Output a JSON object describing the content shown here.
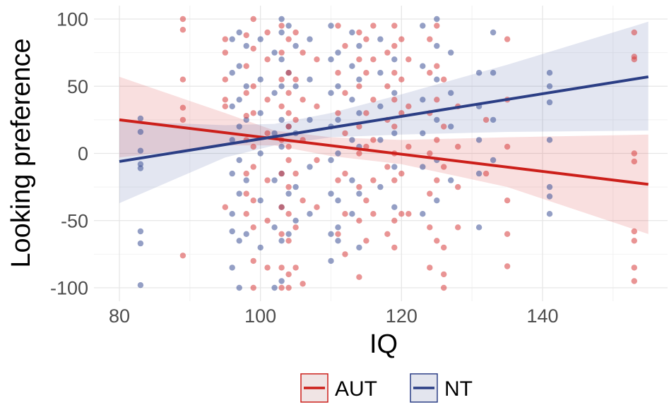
{
  "chart_data": {
    "type": "scatter",
    "xlabel": "IQ",
    "ylabel": "Looking preference",
    "xlim": [
      76,
      156
    ],
    "ylim": [
      -110,
      110
    ],
    "xticks": [
      80,
      100,
      120,
      140
    ],
    "yticks": [
      100,
      50,
      0,
      -50,
      -100
    ],
    "xtick_labels": [
      "80",
      "100",
      "120",
      "140"
    ],
    "ytick_labels": [
      "100",
      "50",
      "0",
      "-50",
      "-100"
    ],
    "grid": true,
    "legend_position": "bottom",
    "series": [
      {
        "name": "AUT",
        "color": "#cc1f1a",
        "fit_line": [
          [
            80,
            25
          ],
          [
            155,
            -23
          ]
        ],
        "ci_band": {
          "x": [
            80,
            95,
            102,
            110,
            120,
            135,
            155
          ],
          "upper": [
            57,
            30,
            17,
            12,
            10,
            12,
            14
          ],
          "lower": [
            -3,
            6,
            6,
            -2,
            -8,
            -25,
            -60
          ]
        },
        "points": [
          [
            89,
            100
          ],
          [
            89,
            92
          ],
          [
            89,
            55
          ],
          [
            89,
            34
          ],
          [
            89,
            25
          ],
          [
            89,
            -76
          ],
          [
            95,
            85
          ],
          [
            95,
            75
          ],
          [
            95,
            55
          ],
          [
            95,
            40
          ],
          [
            95,
            35
          ],
          [
            95,
            -40
          ],
          [
            98,
            88
          ],
          [
            98,
            65
          ],
          [
            98,
            45
          ],
          [
            98,
            28
          ],
          [
            98,
            10
          ],
          [
            98,
            -15
          ],
          [
            98,
            -30
          ],
          [
            98,
            -45
          ],
          [
            99,
            100
          ],
          [
            99,
            78
          ],
          [
            99,
            50
          ],
          [
            99,
            30
          ],
          [
            99,
            5
          ],
          [
            99,
            -10
          ],
          [
            99,
            -35
          ],
          [
            99,
            -55
          ],
          [
            99,
            -80
          ],
          [
            99,
            -100
          ],
          [
            101,
            90
          ],
          [
            101,
            70
          ],
          [
            101,
            40
          ],
          [
            101,
            15
          ],
          [
            101,
            -20
          ],
          [
            101,
            -50
          ],
          [
            101,
            -85
          ],
          [
            103,
            95
          ],
          [
            103,
            75
          ],
          [
            103,
            55
          ],
          [
            103,
            35
          ],
          [
            103,
            10
          ],
          [
            103,
            -15
          ],
          [
            103,
            -40
          ],
          [
            103,
            -60
          ],
          [
            103,
            -85
          ],
          [
            103,
            -100
          ],
          [
            104,
            85
          ],
          [
            104,
            60
          ],
          [
            104,
            45
          ],
          [
            104,
            30
          ],
          [
            104,
            20
          ],
          [
            104,
            5
          ],
          [
            104,
            -5
          ],
          [
            104,
            -25
          ],
          [
            104,
            -45
          ],
          [
            104,
            -65
          ],
          [
            104,
            -90
          ],
          [
            104,
            -100
          ],
          [
            105,
            90
          ],
          [
            105,
            55
          ],
          [
            105,
            25
          ],
          [
            105,
            -15
          ],
          [
            105,
            -55
          ],
          [
            105,
            -85
          ],
          [
            106,
            75
          ],
          [
            106,
            40
          ],
          [
            106,
            10
          ],
          [
            106,
            -35
          ],
          [
            106,
            -97
          ],
          [
            108,
            70
          ],
          [
            108,
            35
          ],
          [
            108,
            -5
          ],
          [
            108,
            -40
          ],
          [
            111,
            95
          ],
          [
            111,
            60
          ],
          [
            111,
            30
          ],
          [
            111,
            -20
          ],
          [
            111,
            -60
          ],
          [
            112,
            80
          ],
          [
            112,
            45
          ],
          [
            112,
            15
          ],
          [
            112,
            -15
          ],
          [
            112,
            -45
          ],
          [
            112,
            -75
          ],
          [
            114,
            90
          ],
          [
            114,
            70
          ],
          [
            114,
            50
          ],
          [
            114,
            20
          ],
          [
            114,
            0
          ],
          [
            114,
            -25
          ],
          [
            114,
            -50
          ],
          [
            114,
            -92
          ],
          [
            115,
            85
          ],
          [
            115,
            60
          ],
          [
            115,
            30
          ],
          [
            115,
            5
          ],
          [
            115,
            -35
          ],
          [
            115,
            -65
          ],
          [
            116,
            95
          ],
          [
            116,
            70
          ],
          [
            116,
            40
          ],
          [
            116,
            10
          ],
          [
            116,
            -20
          ],
          [
            116,
            -45
          ],
          [
            118,
            75
          ],
          [
            118,
            50
          ],
          [
            118,
            25
          ],
          [
            118,
            -10
          ],
          [
            118,
            -60
          ],
          [
            119,
            95
          ],
          [
            119,
            80
          ],
          [
            119,
            60
          ],
          [
            119,
            40
          ],
          [
            119,
            20
          ],
          [
            119,
            0
          ],
          [
            119,
            -20
          ],
          [
            119,
            -50
          ],
          [
            119,
            -70
          ],
          [
            120,
            85
          ],
          [
            120,
            55
          ],
          [
            120,
            30
          ],
          [
            120,
            -15
          ],
          [
            120,
            -45
          ],
          [
            121,
            70
          ],
          [
            121,
            35
          ],
          [
            121,
            5
          ],
          [
            121,
            -45
          ],
          [
            124,
            85
          ],
          [
            124,
            60
          ],
          [
            124,
            30
          ],
          [
            124,
            0
          ],
          [
            124,
            -30
          ],
          [
            124,
            -55
          ],
          [
            124,
            -85
          ],
          [
            125,
            95
          ],
          [
            125,
            65
          ],
          [
            125,
            40
          ],
          [
            125,
            10
          ],
          [
            125,
            -20
          ],
          [
            125,
            -65
          ],
          [
            126,
            55
          ],
          [
            126,
            20
          ],
          [
            126,
            -10
          ],
          [
            126,
            -70
          ],
          [
            126,
            -90
          ],
          [
            126,
            -100
          ],
          [
            128,
            35
          ],
          [
            128,
            5
          ],
          [
            128,
            -25
          ],
          [
            128,
            -55
          ],
          [
            132,
            25
          ],
          [
            132,
            -15
          ],
          [
            135,
            85
          ],
          [
            135,
            40
          ],
          [
            135,
            5
          ],
          [
            135,
            -35
          ],
          [
            135,
            -60
          ],
          [
            135,
            -84
          ],
          [
            153,
            90
          ],
          [
            153,
            72
          ],
          [
            153,
            70
          ],
          [
            153,
            0
          ],
          [
            153,
            -6
          ],
          [
            153,
            -58
          ],
          [
            153,
            -65
          ],
          [
            153,
            -85
          ],
          [
            153,
            -95
          ]
        ]
      },
      {
        "name": "NT",
        "color": "#2b3e85",
        "fit_line": [
          [
            80,
            -6
          ],
          [
            155,
            57
          ]
        ],
        "ci_band": {
          "x": [
            80,
            95,
            102,
            110,
            120,
            135,
            155
          ],
          "upper": [
            24,
            21,
            22,
            30,
            44,
            66,
            98
          ],
          "lower": [
            -37,
            -3,
            6,
            12,
            14,
            16,
            17
          ]
        },
        "points": [
          [
            83,
            26
          ],
          [
            83,
            16
          ],
          [
            83,
            2
          ],
          [
            83,
            -8
          ],
          [
            83,
            -11
          ],
          [
            83,
            -58
          ],
          [
            83,
            -67
          ],
          [
            83,
            -98
          ],
          [
            96,
            85
          ],
          [
            96,
            60
          ],
          [
            96,
            35
          ],
          [
            96,
            10
          ],
          [
            96,
            -15
          ],
          [
            96,
            -45
          ],
          [
            96,
            -58
          ],
          [
            96,
            -85
          ],
          [
            97,
            90
          ],
          [
            97,
            65
          ],
          [
            97,
            40
          ],
          [
            97,
            20
          ],
          [
            97,
            -5
          ],
          [
            97,
            -30
          ],
          [
            97,
            -65
          ],
          [
            97,
            -100
          ],
          [
            98,
            80
          ],
          [
            98,
            50
          ],
          [
            98,
            25
          ],
          [
            98,
            -20
          ],
          [
            98,
            -60
          ],
          [
            100,
            85
          ],
          [
            100,
            55
          ],
          [
            100,
            30
          ],
          [
            100,
            0
          ],
          [
            100,
            -35
          ],
          [
            100,
            -70
          ],
          [
            102,
            75
          ],
          [
            102,
            45
          ],
          [
            102,
            15
          ],
          [
            102,
            -20
          ],
          [
            102,
            -55
          ],
          [
            102,
            -100
          ],
          [
            103,
            100
          ],
          [
            103,
            90
          ],
          [
            103,
            70
          ],
          [
            103,
            50
          ],
          [
            103,
            25
          ],
          [
            103,
            5
          ],
          [
            103,
            -15
          ],
          [
            103,
            -40
          ],
          [
            103,
            -65
          ],
          [
            103,
            -95
          ],
          [
            104,
            95
          ],
          [
            104,
            60
          ],
          [
            104,
            20
          ],
          [
            104,
            -30
          ],
          [
            104,
            -60
          ],
          [
            105,
            80
          ],
          [
            105,
            50
          ],
          [
            105,
            15
          ],
          [
            105,
            -25
          ],
          [
            105,
            -50
          ],
          [
            107,
            85
          ],
          [
            107,
            55
          ],
          [
            107,
            25
          ],
          [
            107,
            -10
          ],
          [
            107,
            -45
          ],
          [
            110,
            95
          ],
          [
            110,
            70
          ],
          [
            110,
            45
          ],
          [
            110,
            20
          ],
          [
            110,
            -5
          ],
          [
            110,
            -30
          ],
          [
            110,
            -60
          ],
          [
            110,
            -80
          ],
          [
            111,
            75
          ],
          [
            111,
            50
          ],
          [
            111,
            25
          ],
          [
            111,
            0
          ],
          [
            111,
            -35
          ],
          [
            111,
            -55
          ],
          [
            111,
            -65
          ],
          [
            113,
            90
          ],
          [
            113,
            65
          ],
          [
            113,
            40
          ],
          [
            113,
            10
          ],
          [
            113,
            -20
          ],
          [
            113,
            -45
          ],
          [
            114,
            80
          ],
          [
            114,
            55
          ],
          [
            114,
            30
          ],
          [
            114,
            5
          ],
          [
            114,
            -30
          ],
          [
            114,
            -70
          ],
          [
            117,
            85
          ],
          [
            117,
            60
          ],
          [
            117,
            35
          ],
          [
            117,
            10
          ],
          [
            117,
            -25
          ],
          [
            119,
            70
          ],
          [
            119,
            45
          ],
          [
            119,
            15
          ],
          [
            119,
            -10
          ],
          [
            119,
            -40
          ],
          [
            123,
            95
          ],
          [
            123,
            65
          ],
          [
            123,
            40
          ],
          [
            123,
            15
          ],
          [
            123,
            -10
          ],
          [
            123,
            -45
          ],
          [
            125,
            100
          ],
          [
            125,
            80
          ],
          [
            125,
            55
          ],
          [
            125,
            25
          ],
          [
            125,
            -5
          ],
          [
            125,
            -35
          ],
          [
            127,
            75
          ],
          [
            127,
            45
          ],
          [
            127,
            20
          ],
          [
            127,
            -20
          ],
          [
            131,
            60
          ],
          [
            131,
            35
          ],
          [
            131,
            10
          ],
          [
            131,
            -15
          ],
          [
            131,
            -55
          ],
          [
            133,
            90
          ],
          [
            133,
            60
          ],
          [
            133,
            25
          ],
          [
            133,
            -5
          ],
          [
            141,
            60
          ],
          [
            141,
            50
          ],
          [
            141,
            38
          ],
          [
            141,
            10
          ],
          [
            141,
            -25
          ],
          [
            141,
            -32
          ],
          [
            141,
            -45
          ]
        ]
      }
    ]
  }
}
